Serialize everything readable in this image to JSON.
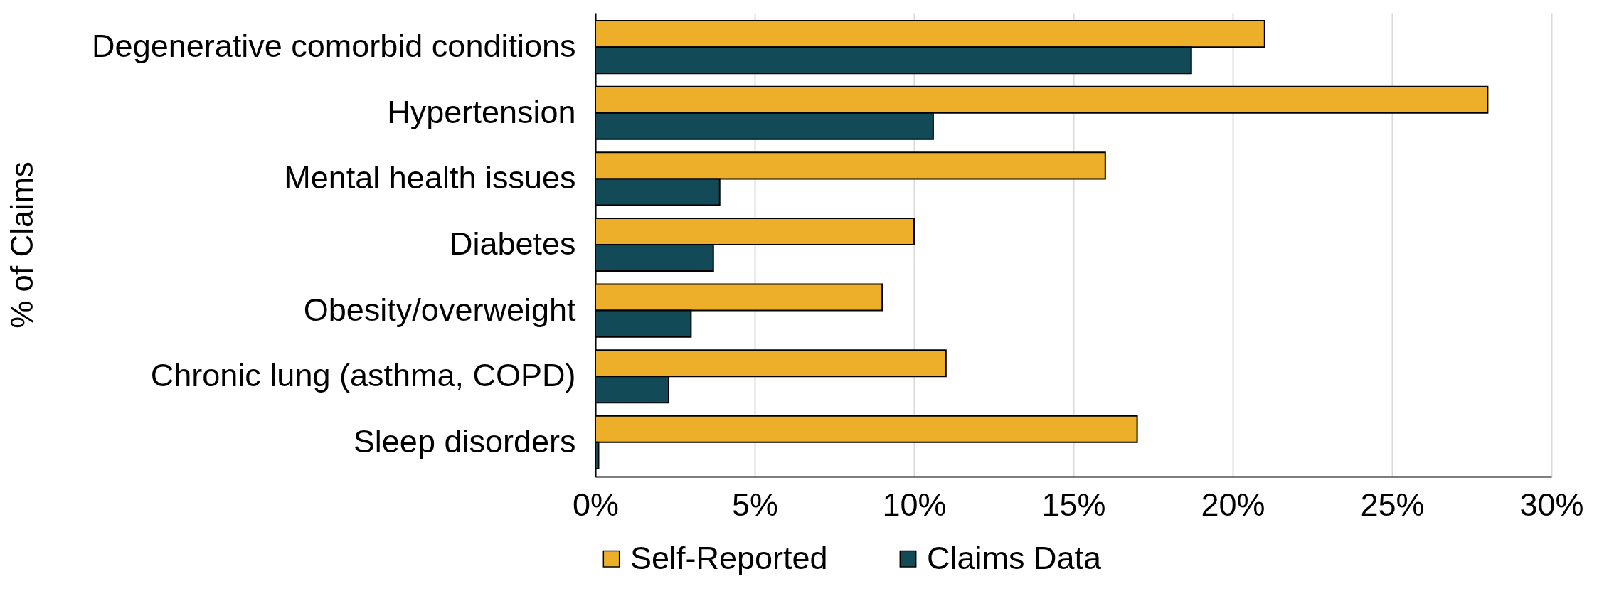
{
  "chart_data": {
    "type": "bar",
    "orientation": "horizontal",
    "ylabel": "% of Claims",
    "categories": [
      "Degenerative comorbid conditions",
      "Hypertension",
      "Mental health issues",
      "Diabetes",
      "Obesity/overweight",
      "Chronic lung (asthma, COPD)",
      "Sleep disorders"
    ],
    "series": [
      {
        "name": "Self-Reported",
        "color": "#edaf29",
        "values": [
          21,
          28,
          16,
          10,
          9,
          11,
          17
        ]
      },
      {
        "name": "Claims Data",
        "color": "#124a57",
        "values": [
          18.7,
          10.6,
          3.9,
          3.7,
          3.0,
          2.3,
          0.1
        ]
      }
    ],
    "xlim": [
      0,
      30
    ],
    "xticks": [
      {
        "value": 0,
        "label": "0%"
      },
      {
        "value": 5,
        "label": "5%"
      },
      {
        "value": 10,
        "label": "10%"
      },
      {
        "value": 15,
        "label": "15%"
      },
      {
        "value": 20,
        "label": "20%"
      },
      {
        "value": 25,
        "label": "25%"
      },
      {
        "value": 30,
        "label": "30%"
      }
    ],
    "grid": "x",
    "legend": "bottom"
  }
}
